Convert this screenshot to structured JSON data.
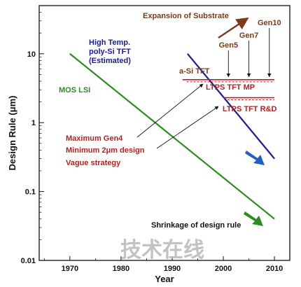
{
  "chart_data": {
    "type": "line",
    "xlabel": "Year",
    "ylabel": "Design Rule (μm)",
    "xlim": [
      1964,
      2013
    ],
    "ylim": [
      0.01,
      50
    ],
    "y_scale": "log",
    "grid": false,
    "x_ticks": [
      {
        "value": 1970,
        "label": "1970"
      },
      {
        "value": 1980,
        "label": "1980"
      },
      {
        "value": 1990,
        "label": "1990"
      },
      {
        "value": 2000,
        "label": "2000"
      },
      {
        "value": 2010,
        "label": "2010"
      }
    ],
    "y_ticks": [
      {
        "value": 10,
        "label": "10"
      },
      {
        "value": 1,
        "label": "1"
      },
      {
        "value": 0.1,
        "label": "0.1"
      },
      {
        "value": 0.01,
        "label": "0.01"
      }
    ],
    "series": [
      {
        "name": "MOS LSI",
        "color": "#2e8b22",
        "points": [
          [
            1970,
            10
          ],
          [
            2010,
            0.04
          ]
        ]
      },
      {
        "name": "High Temp. poly-Si TFT (Estimated)",
        "color": "#1c1c8c",
        "points": [
          [
            1993,
            10
          ],
          [
            2010,
            0.3
          ]
        ]
      }
    ],
    "ranges": [
      {
        "name": "LTPS TFT MP",
        "color": "#b22222",
        "x": [
          1992,
          2010
        ],
        "y": 4.2
      },
      {
        "name": "LTPS TFT R&D",
        "color": "#b22222",
        "x": [
          2000,
          2010
        ],
        "y": 2.3
      }
    ],
    "generations": [
      {
        "label": "Gen5",
        "x": 2001
      },
      {
        "label": "Gen7",
        "x": 2005
      },
      {
        "label": "Gen10",
        "x": 2009
      }
    ],
    "annotations": {
      "expansion": "Expansion of Substrate",
      "high_temp_line1": "High Temp.",
      "high_temp_line2": "poly-Si TFT",
      "high_temp_line3": "(Estimated)",
      "mos_lsi": "MOS LSI",
      "asi_tft": "a-Si TFT",
      "ltps_mp": "LTPS  TFT  MP",
      "ltps_rd": "LTPS  TFT R&D",
      "strategy_line1": "Maximum Gen4",
      "strategy_line2": "Minimum 2μm design",
      "strategy_line3": "Vague strategy",
      "shrinkage": "Shrinkage of design rule"
    },
    "colors": {
      "brown": "#7b3b1a",
      "red": "#b22222",
      "navy": "#1c1c8c",
      "green": "#2e8b22",
      "blue_arrow": "#1f5fbf",
      "axis": "#111111"
    }
  },
  "watermark": "技术在线"
}
